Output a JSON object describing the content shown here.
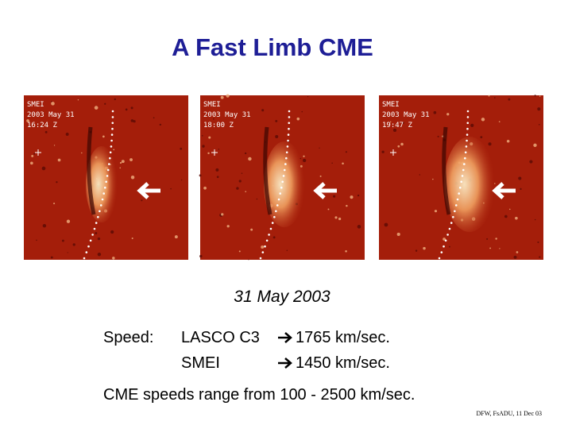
{
  "title": "A Fast Limb CME",
  "panels": [
    {
      "instrument": "SMEI",
      "date": "2003 May 31",
      "time": "16:24 Z"
    },
    {
      "instrument": "SMEI",
      "date": "2003 May 31",
      "time": "18:00 Z"
    },
    {
      "instrument": "SMEI",
      "date": "2003 May 31",
      "time": "19:47 Z"
    }
  ],
  "date_caption": "31 May 2003",
  "speed": {
    "label": "Speed:",
    "rows": [
      {
        "instrument": "LASCO C3",
        "value": "1765 km/sec."
      },
      {
        "instrument": "SMEI",
        "value": "1450 km/sec."
      }
    ]
  },
  "summary": "CME speeds range from 100 - 2500 km/sec.",
  "credit": "DFW, FsADU, 11 Dec 03"
}
